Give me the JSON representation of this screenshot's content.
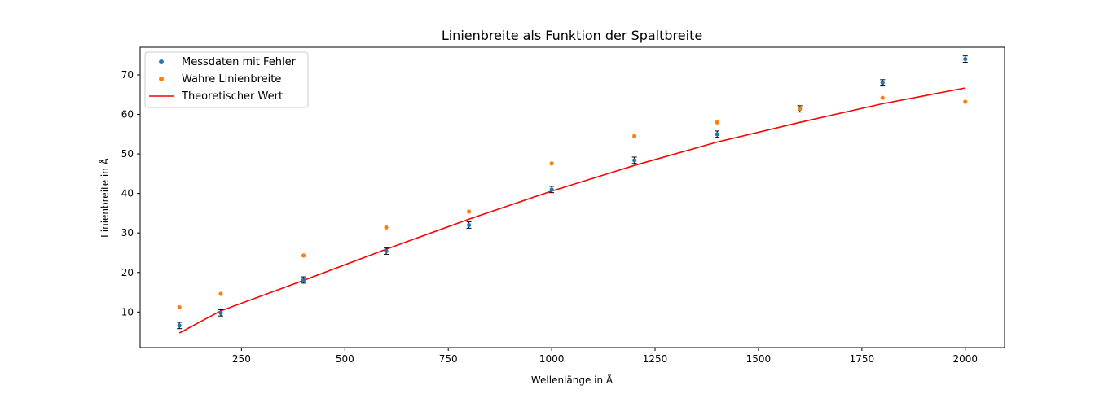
{
  "chart_data": {
    "type": "scatter",
    "title": "Linienbreite als Funktion der Spaltbreite",
    "xlabel": "Wellenlänge in Å",
    "ylabel": "Linienbreite in Å",
    "xlim": [
      5,
      2095
    ],
    "ylim": [
      1,
      77
    ],
    "xticks": [
      250,
      500,
      750,
      1000,
      1250,
      1500,
      1750,
      2000
    ],
    "yticks": [
      10,
      20,
      30,
      40,
      50,
      60,
      70
    ],
    "grid": false,
    "legend_position": "top-left",
    "series": [
      {
        "name": "Messdaten mit Fehler",
        "kind": "errorbar-points",
        "color": "#1f77b4",
        "error_color": "#000000",
        "x": [
          100,
          200,
          400,
          600,
          800,
          1000,
          1200,
          1400,
          1600,
          1800,
          2000
        ],
        "y": [
          6.6,
          9.8,
          18.1,
          25.4,
          32.0,
          41.0,
          48.4,
          55.0,
          61.4,
          68.0,
          74.0
        ],
        "yerr": [
          0.8,
          0.8,
          0.8,
          0.8,
          0.8,
          0.8,
          0.8,
          0.8,
          0.8,
          0.8,
          0.8
        ]
      },
      {
        "name": "Wahre Linienbreite",
        "kind": "points",
        "color": "#ff7f0e",
        "x": [
          100,
          200,
          400,
          600,
          800,
          1000,
          1200,
          1400,
          1600,
          1800,
          2000
        ],
        "y": [
          11.2,
          14.6,
          24.3,
          31.4,
          35.4,
          47.6,
          54.5,
          58.0,
          61.5,
          64.2,
          63.2
        ]
      },
      {
        "name": "Theoretischer Wert",
        "kind": "line",
        "color": "#ff0000",
        "x": [
          100,
          200,
          400,
          600,
          800,
          1000,
          1200,
          1400,
          1600,
          1800,
          2000
        ],
        "y": [
          4.7,
          10.3,
          18.0,
          25.9,
          33.5,
          40.6,
          47.1,
          53.0,
          58.0,
          62.7,
          66.7
        ]
      }
    ]
  }
}
